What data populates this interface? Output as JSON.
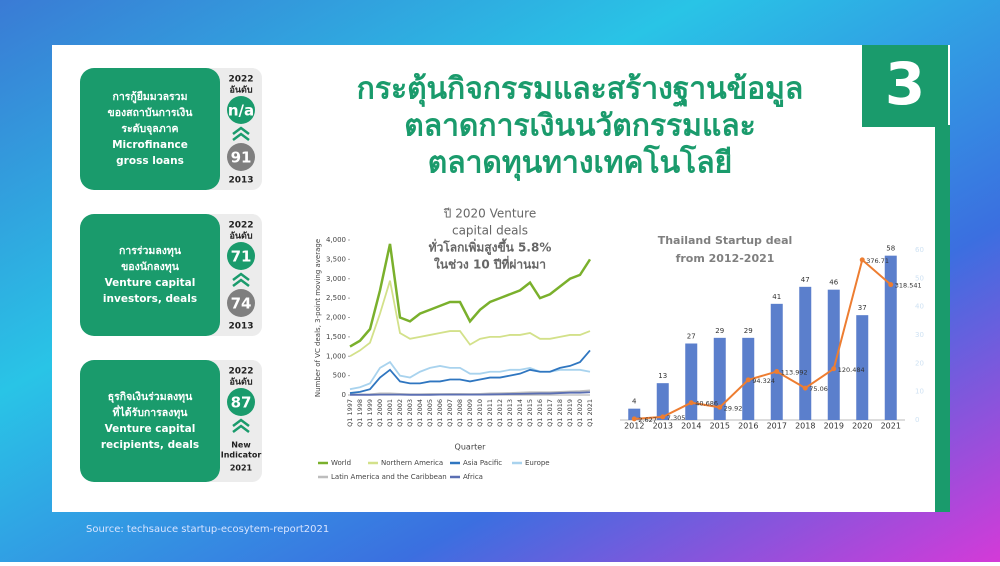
{
  "header": {
    "title": [
      "กระตุ้นกิจกรรมและสร้างฐานข้อมูล",
      "ตลาดการเงินนวัตกรรมและ",
      "ตลาดทุนทางเทคโนโลยี"
    ],
    "badge": "3"
  },
  "panels": [
    {
      "thai": [
        "การกู้ยืมมวลรวม",
        "ของสถาบันการเงิน",
        "ระดับจุลภาค"
      ],
      "english": [
        "Microfinance",
        "gross loans"
      ],
      "year": "2022",
      "rank_label": "อันดับ",
      "rank": "n/a",
      "previous_rank": 91,
      "previous_year": "2013"
    },
    {
      "thai": [
        "การร่วมลงทุน",
        "ของนักลงทุน"
      ],
      "english": [
        "Venture capital",
        "investors, deals"
      ],
      "year": "2022",
      "rank_label": "อันดับ",
      "rank": 71,
      "previous_rank": 74,
      "previous_year": "2013"
    },
    {
      "thai": [
        "ธุรกิจเงินร่วมลงทุน",
        "ที่ได้รับการลงทุน"
      ],
      "english": [
        "Venture capital",
        "recipients, deals"
      ],
      "year": "2022",
      "rank_label": "อันดับ",
      "rank": 87,
      "previous_note": [
        "New",
        "Indicator"
      ],
      "previous_year": "2021"
    }
  ],
  "source": "Source: techsauce startup-ecosytem-report2021",
  "chart_data": [
    {
      "type": "line",
      "title": [
        "ปี 2020 Venture",
        "capital deals",
        "ทั่วโลกเพิ่มสูงขึ้น 5.8%",
        "ในช่วง 10 ปีที่ผ่านมา"
      ],
      "y_label": "Number of VC deals, 3-point moving average",
      "x_label": "Quarter",
      "categories": [
        "Q1 1997",
        "Q1 1998",
        "Q1 1999",
        "Q1 2000",
        "Q1 2001",
        "Q1 2002",
        "Q1 2003",
        "Q1 2004",
        "Q1 2005",
        "Q1 2006",
        "Q1 2007",
        "Q1 2008",
        "Q1 2009",
        "Q1 2010",
        "Q1 2011",
        "Q1 2012",
        "Q1 2013",
        "Q1 2014",
        "Q1 2015",
        "Q1 2016",
        "Q1 2017",
        "Q1 2018",
        "Q1 2019",
        "Q1 2020",
        "Q1 2021"
      ],
      "ylim": [
        0,
        4000
      ],
      "yticks": [
        0,
        500,
        {
          "value": 1000,
          "label": "1,000"
        },
        {
          "value": 1500,
          "label": "1,500"
        },
        {
          "value": 2000,
          "label": "2,000"
        },
        {
          "value": 2500,
          "label": "2,500"
        },
        {
          "value": 3000,
          "label": "3,000"
        },
        {
          "value": 3500,
          "label": "3,500"
        },
        {
          "value": 4000,
          "label": "4,000"
        }
      ],
      "grid": false,
      "legend": "bottom",
      "series": [
        {
          "name": "World",
          "color": "#7ab02c",
          "values": [
            1250,
            1400,
            1700,
            2700,
            3900,
            2000,
            1900,
            2100,
            2200,
            2300,
            2400,
            2400,
            1900,
            2200,
            2400,
            2500,
            2600,
            2700,
            2900,
            2500,
            2600,
            2800,
            3000,
            3100,
            3500
          ]
        },
        {
          "name": "Northern America",
          "color": "#d3e18a",
          "values": [
            1000,
            1150,
            1350,
            2100,
            2950,
            1600,
            1450,
            1500,
            1550,
            1600,
            1650,
            1650,
            1300,
            1450,
            1500,
            1500,
            1550,
            1550,
            1600,
            1450,
            1450,
            1500,
            1550,
            1550,
            1650
          ]
        },
        {
          "name": "Asia Pacific",
          "color": "#2f76c0",
          "values": [
            50,
            80,
            150,
            450,
            650,
            350,
            300,
            300,
            350,
            350,
            400,
            400,
            350,
            400,
            450,
            450,
            500,
            550,
            650,
            600,
            600,
            700,
            750,
            850,
            1150
          ]
        },
        {
          "name": "Europe",
          "color": "#a9d3ee",
          "values": [
            150,
            200,
            300,
            700,
            850,
            500,
            450,
            600,
            700,
            750,
            700,
            700,
            550,
            550,
            600,
            600,
            650,
            650,
            700,
            600,
            600,
            650,
            650,
            650,
            600
          ]
        },
        {
          "name": "Latin America and the Caribbean",
          "color": "#bdbdbd",
          "values": [
            10,
            15,
            20,
            40,
            40,
            30,
            20,
            20,
            25,
            25,
            30,
            30,
            25,
            30,
            40,
            45,
            50,
            60,
            70,
            70,
            70,
            80,
            90,
            100,
            120
          ]
        },
        {
          "name": "Africa",
          "color": "#5b6fb3",
          "values": [
            5,
            5,
            5,
            10,
            10,
            10,
            5,
            5,
            5,
            10,
            10,
            10,
            10,
            10,
            15,
            20,
            25,
            30,
            35,
            40,
            40,
            50,
            60,
            60,
            70
          ]
        }
      ]
    },
    {
      "type": "combo",
      "title": [
        "Thailand Startup deal",
        "from 2012-2021"
      ],
      "categories": [
        "2012",
        "2013",
        "2014",
        "2015",
        "2016",
        "2017",
        "2018",
        "2019",
        "2020",
        "2021"
      ],
      "ylim": [
        0,
        60
      ],
      "yticks": [
        0,
        10,
        20,
        30,
        40,
        50,
        60
      ],
      "y2lim": [
        0,
        400
      ],
      "series": [
        {
          "kind": "bar",
          "color": "#5b7fcc",
          "values": [
            4,
            13,
            27,
            29,
            29,
            41,
            47,
            46,
            37,
            58
          ]
        },
        {
          "kind": "line",
          "axis": "y2",
          "color": "#ed7d31",
          "values": [
            2.627,
            7.305,
            40.686,
            29.92,
            94.324,
            113.992,
            75.06,
            120.484,
            376.71,
            318.541
          ]
        }
      ]
    }
  ]
}
